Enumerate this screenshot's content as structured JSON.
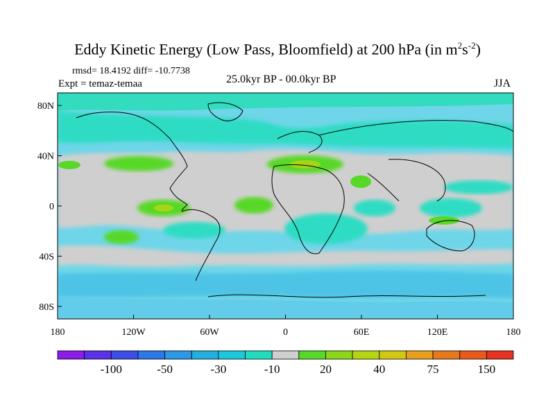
{
  "title": {
    "text": "Eddy Kinetic Energy (Low Pass, Bloomfield) at 200 hPa (in m",
    "unit_sup1": "2",
    "unit_mid": "s",
    "unit_sup2": "-2",
    "unit_end": ")"
  },
  "stats": "rmsd= 18.4192 diff= -10.7738",
  "experiment": "Expt = temaz-temaa",
  "period": "25.0kyr BP - 00.0kyr BP",
  "season": "JJA",
  "map": {
    "projection": "cylindrical-equidistant",
    "lon_range": [
      -180,
      180
    ],
    "lat_range": [
      -90,
      90
    ],
    "x_ticks": [
      {
        "lon": -180,
        "label": "180"
      },
      {
        "lon": -120,
        "label": "120W"
      },
      {
        "lon": -60,
        "label": "60W"
      },
      {
        "lon": 0,
        "label": "0"
      },
      {
        "lon": 60,
        "label": "60E"
      },
      {
        "lon": 120,
        "label": "120E"
      },
      {
        "lon": 180,
        "label": "180"
      }
    ],
    "y_ticks": [
      {
        "lat": 80,
        "label": "80N"
      },
      {
        "lat": 40,
        "label": "40N"
      },
      {
        "lat": 0,
        "label": "0"
      },
      {
        "lat": -40,
        "label": "40S"
      },
      {
        "lat": -80,
        "label": "80S"
      }
    ]
  },
  "colorbar": {
    "colors": [
      "#8a1ee6",
      "#5a32e8",
      "#3c50e6",
      "#2d78e6",
      "#2d98e6",
      "#23b0e0",
      "#1ec8dc",
      "#23dcc0",
      "#cfcfcf",
      "#58d828",
      "#8cd61c",
      "#b4d414",
      "#d2c814",
      "#e6a01e",
      "#e6781e",
      "#e65a1e",
      "#e6321e"
    ],
    "labels": [
      {
        "after_index": 1,
        "text": "-100"
      },
      {
        "after_index": 3,
        "text": "-50"
      },
      {
        "after_index": 5,
        "text": "-30"
      },
      {
        "after_index": 7,
        "text": "-10"
      },
      {
        "after_index": 9,
        "text": "20"
      },
      {
        "after_index": 11,
        "text": "40"
      },
      {
        "after_index": 13,
        "text": "75"
      },
      {
        "after_index": 15,
        "text": "150"
      }
    ]
  }
}
